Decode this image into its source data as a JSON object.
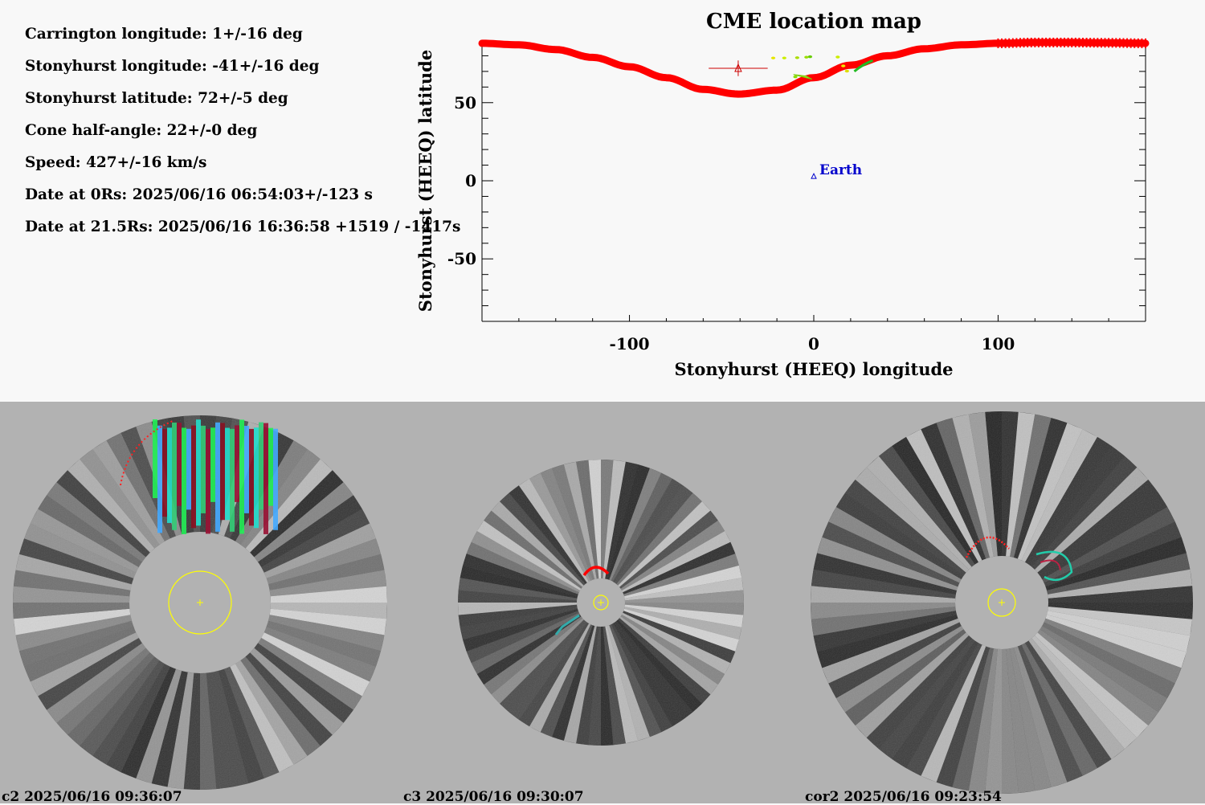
{
  "parameters": [
    {
      "label": "Carrington longitude:",
      "value": "1+/-16 deg"
    },
    {
      "label": "Stonyhurst longitude:",
      "value": "-41+/-16 deg"
    },
    {
      "label": "Stonyhurst latitude:",
      "value": "72+/-5 deg"
    },
    {
      "label": "Cone half-angle:",
      "value": "22+/-0 deg"
    },
    {
      "label": "Speed:",
      "value": "427+/-16 km/s"
    },
    {
      "label": "Date at 0Rs:",
      "value": "2025/06/16 06:54:03+/-123 s"
    },
    {
      "label": "Date at 21.5Rs:",
      "value": "2025/06/16 16:36:58 +1519 / -1417s"
    }
  ],
  "chart_data": {
    "type": "scatter",
    "title": "CME location map",
    "xlabel": "Stonyhurst (HEEQ) longitude",
    "ylabel": "Stonyhurst (HEEQ) latitude",
    "xlim": [
      -180,
      180
    ],
    "ylim": [
      -90,
      90
    ],
    "xticks": [
      -100,
      0,
      100
    ],
    "yticks": [
      -50,
      0,
      50
    ],
    "series": [
      {
        "kind": "boundary-curve",
        "color": "#ff0000",
        "x": [
          -180,
          -160,
          -140,
          -120,
          -100,
          -80,
          -60,
          -41,
          -20,
          0,
          20,
          40,
          60,
          80,
          100,
          120,
          140,
          160,
          180
        ],
        "y": [
          88,
          87,
          84,
          79,
          73,
          66,
          58.5,
          55.5,
          58,
          66,
          74,
          80,
          84.5,
          87,
          88,
          88.5,
          88.5,
          88.3,
          88
        ]
      },
      {
        "kind": "cme-location",
        "color": "#cc0000",
        "x": -41,
        "y": 72,
        "xerr": 16,
        "yerr": 5
      }
    ],
    "detections": [
      {
        "x": -22,
        "y": 78.6,
        "color": "#e6e600"
      },
      {
        "x": -16,
        "y": 78.6,
        "color": "#ccee00"
      },
      {
        "x": -9,
        "y": 78.8,
        "color": "#aadd00"
      },
      {
        "x": -4,
        "y": 79.1,
        "color": "#99dd00"
      },
      {
        "x": -2,
        "y": 79.4,
        "color": "#66cc00"
      },
      {
        "x": 13,
        "y": 79.2,
        "color": "#ccee00"
      },
      {
        "x": 16,
        "y": 73.5,
        "color": "#eeee00"
      },
      {
        "x": 18,
        "y": 70.2,
        "color": "#dddd00"
      },
      {
        "x": -10,
        "y": 66.5,
        "color": "#88dd00"
      }
    ],
    "annotations": [
      {
        "label": "Earth",
        "x": 0,
        "y": 3,
        "color": "#0000cc"
      }
    ]
  },
  "coronagraphs": [
    {
      "instrument": "c2",
      "label": "c2 2025/06/16 09:36:07"
    },
    {
      "instrument": "c3",
      "label": "c3 2025/06/16 09:30:07"
    },
    {
      "instrument": "cor2",
      "label": "cor2 2025/06/16 09:23:54"
    }
  ],
  "colors": {
    "fit_curve": "#ff0000",
    "cme_marker": "#cc0000",
    "earth": "#0000cc",
    "sun_disk": "#ffff00",
    "occulter": "#b2b2b2"
  }
}
